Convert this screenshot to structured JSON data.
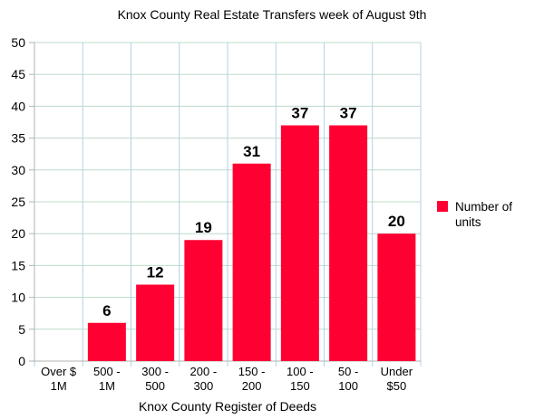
{
  "chart_data": {
    "type": "bar",
    "title": "Knox County Real Estate Transfers week of August 9th",
    "xlabel": "Knox County Register of Deeds",
    "ylabel": "",
    "categories": [
      [
        "Over $",
        "1M"
      ],
      [
        "500 -",
        "1M"
      ],
      [
        "300 -",
        "500"
      ],
      [
        "200 -",
        "300"
      ],
      [
        "150 -",
        "200"
      ],
      [
        "100 -",
        "150"
      ],
      [
        "50 -",
        "100"
      ],
      [
        "Under",
        "$50"
      ]
    ],
    "series": [
      {
        "name": "Number of units",
        "values": [
          0,
          6,
          12,
          19,
          31,
          37,
          37,
          20
        ],
        "color": "#ff0033"
      }
    ],
    "data_labels": [
      "",
      "6",
      "12",
      "19",
      "31",
      "37",
      "37",
      "20"
    ],
    "ylim": [
      0,
      50
    ],
    "yticks": [
      "0",
      "5",
      "10",
      "15",
      "20",
      "25",
      "30",
      "35",
      "40",
      "45",
      "50"
    ],
    "grid": true,
    "legend_position": "right"
  }
}
